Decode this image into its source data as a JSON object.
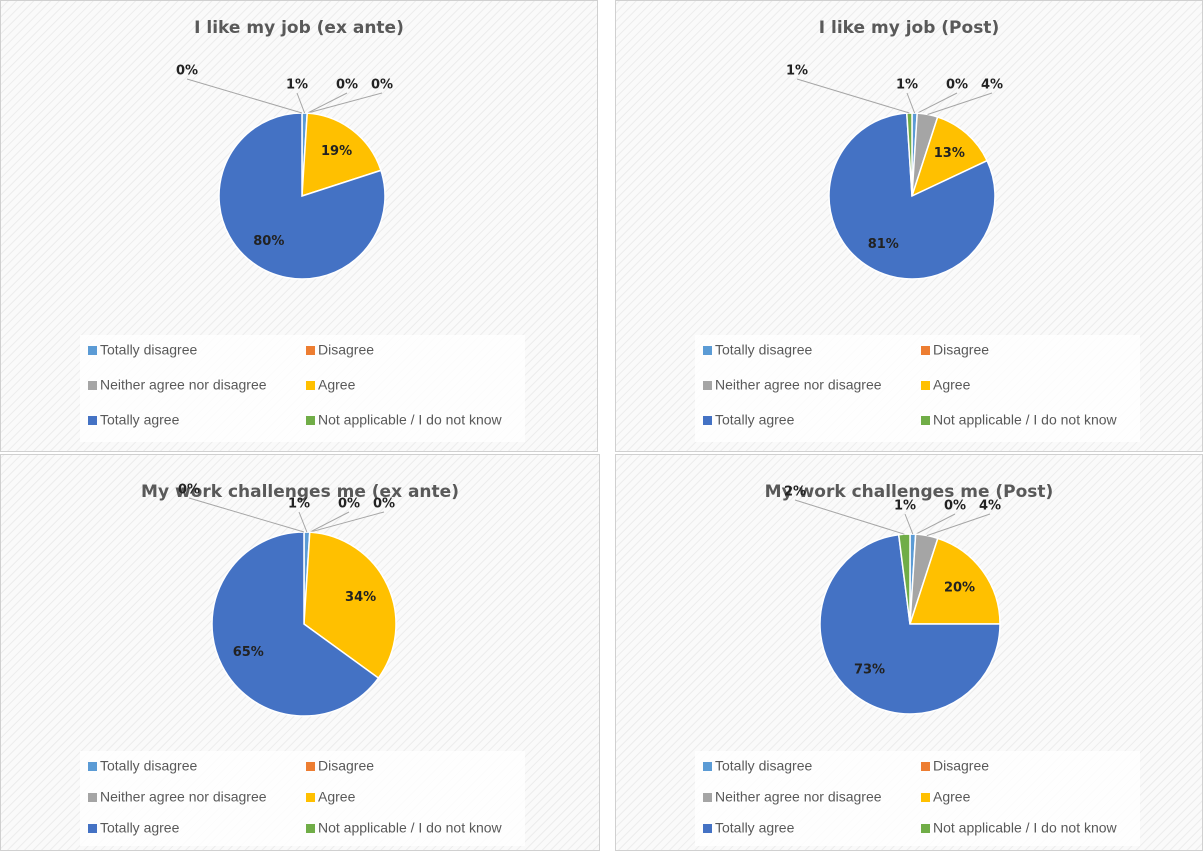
{
  "chart_data": [
    {
      "type": "pie",
      "title": "I like my job (ex ante)",
      "categories": [
        "Totally disagree",
        "Disagree",
        "Neither agree nor disagree",
        "Agree",
        "Totally agree",
        "Not applicable / I do not know"
      ],
      "values": [
        1,
        0,
        0,
        19,
        80,
        0
      ],
      "value_labels": [
        "1%",
        "0%",
        "0%",
        "19%",
        "80%",
        "0%"
      ],
      "colors": [
        "#5b9bd5",
        "#ed7d31",
        "#a5a5a5",
        "#ffc000",
        "#4472c4",
        "#70ad47"
      ]
    },
    {
      "type": "pie",
      "title": "I like my job (Post)",
      "categories": [
        "Totally disagree",
        "Disagree",
        "Neither agree nor disagree",
        "Agree",
        "Totally agree",
        "Not applicable / I do not know"
      ],
      "values": [
        1,
        0,
        4,
        13,
        81,
        1
      ],
      "value_labels": [
        "1%",
        "0%",
        "4%",
        "13%",
        "81%",
        "1%"
      ],
      "colors": [
        "#5b9bd5",
        "#ed7d31",
        "#a5a5a5",
        "#ffc000",
        "#4472c4",
        "#70ad47"
      ]
    },
    {
      "type": "pie",
      "title": "My work challenges me (ex ante)",
      "categories": [
        "Totally disagree",
        "Disagree",
        "Neither agree nor disagree",
        "Agree",
        "Totally agree",
        "Not applicable / I do not know"
      ],
      "values": [
        1,
        0,
        0,
        34,
        65,
        0
      ],
      "value_labels": [
        "1%",
        "0%",
        "0%",
        "34%",
        "65%",
        "0%"
      ],
      "colors": [
        "#5b9bd5",
        "#ed7d31",
        "#a5a5a5",
        "#ffc000",
        "#4472c4",
        "#70ad47"
      ]
    },
    {
      "type": "pie",
      "title": "My work challenges me (Post)",
      "categories": [
        "Totally disagree",
        "Disagree",
        "Neither agree nor disagree",
        "Agree",
        "Totally agree",
        "Not applicable / I do not know"
      ],
      "values": [
        1,
        0,
        4,
        20,
        73,
        2
      ],
      "value_labels": [
        "1%",
        "0%",
        "4%",
        "20%",
        "73%",
        "2%"
      ],
      "colors": [
        "#5b9bd5",
        "#ed7d31",
        "#a5a5a5",
        "#ffc000",
        "#4472c4",
        "#70ad47"
      ]
    }
  ]
}
